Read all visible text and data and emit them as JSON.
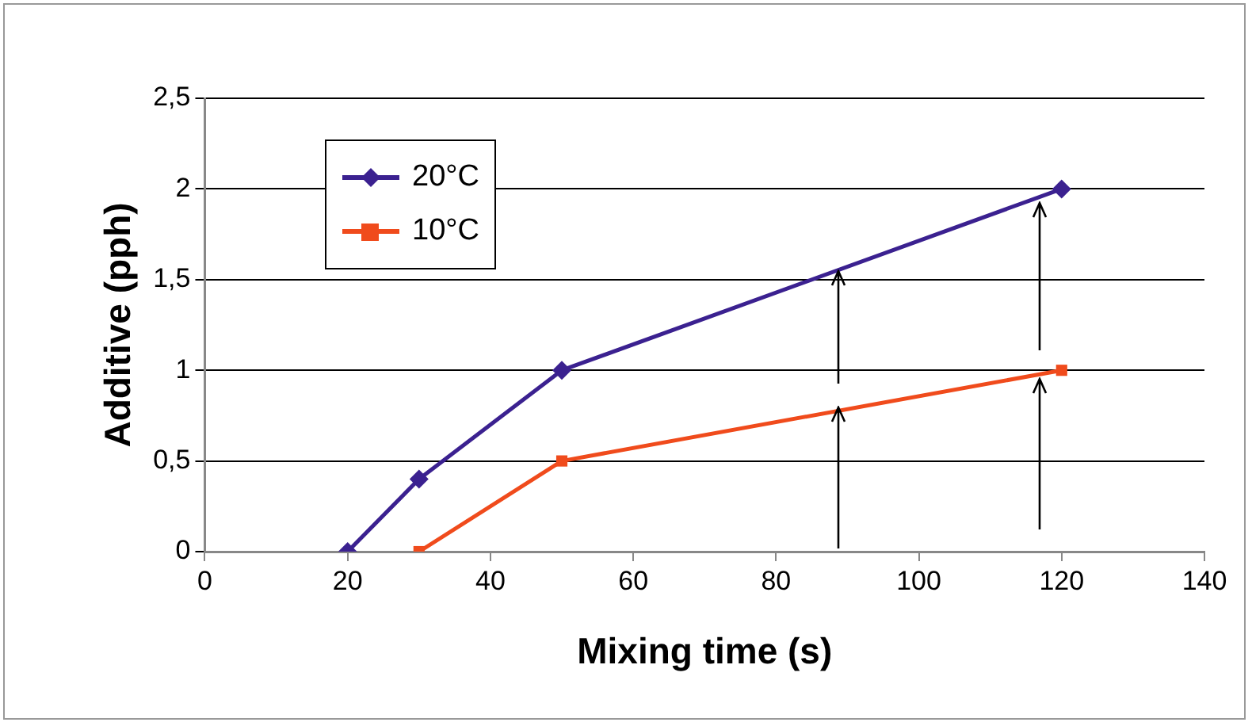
{
  "chart_data": {
    "type": "line",
    "xlabel": "Mixing time (s)",
    "ylabel": "Additive (pph)",
    "xlim": [
      0,
      140
    ],
    "xticks": [
      0,
      20,
      40,
      60,
      80,
      100,
      120,
      140
    ],
    "ylim": [
      0,
      2.5
    ],
    "yticks": [
      0,
      {
        "value": 0.5,
        "label": "0,5"
      },
      1,
      {
        "value": 1.5,
        "label": "1,5"
      },
      2,
      {
        "value": 2.5,
        "label": "2,5"
      }
    ],
    "grid": "y",
    "legend": "top left",
    "series": [
      {
        "name": "20°C",
        "color": "#3b2190",
        "marker": "diamond",
        "x": [
          20,
          30,
          50,
          120
        ],
        "values": [
          0,
          0.4,
          1,
          2
        ]
      },
      {
        "name": "10°C",
        "color": "#f04b1c",
        "marker": "square",
        "x": [
          30,
          50,
          120
        ],
        "values": [
          0,
          0.5,
          1
        ]
      }
    ]
  }
}
